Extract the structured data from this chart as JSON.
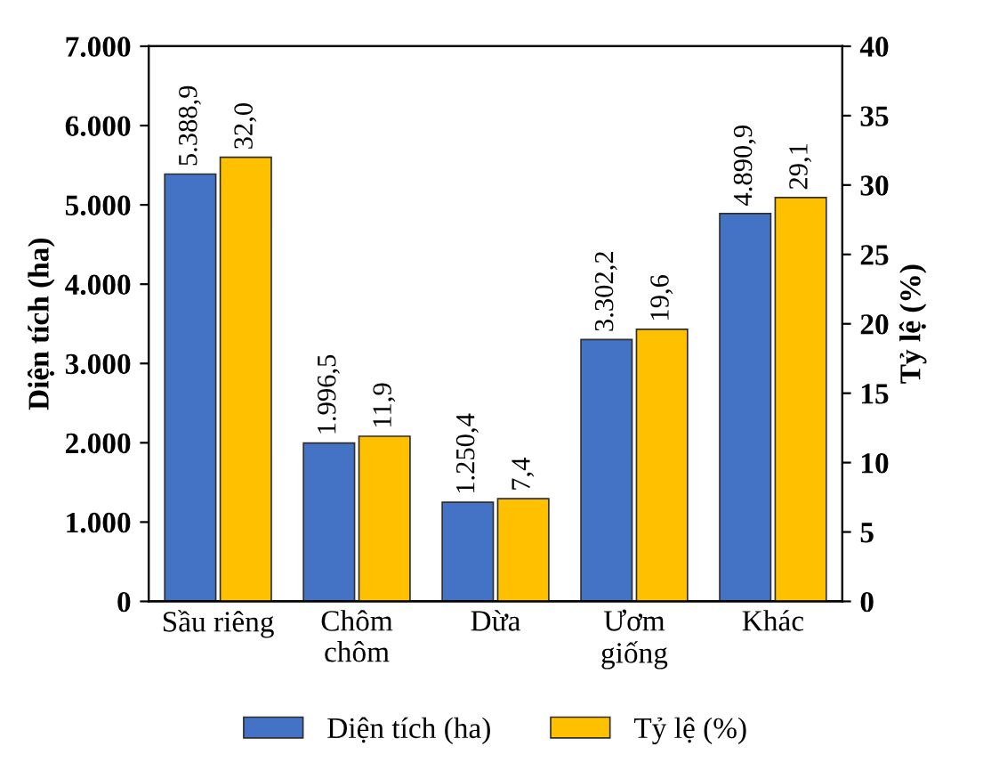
{
  "chart_data": {
    "type": "bar",
    "xlabel": null,
    "ylabel": "Diện tích (ha)",
    "y2label": "Tỷ lệ (%)",
    "categories": [
      "Sầu riêng",
      "Chôm\nchôm",
      "Dừa",
      "Ươm\ngiống",
      "Khác"
    ],
    "series": [
      {
        "name": "Diện tích (ha)",
        "color": "#4472c4",
        "values": [
          5388.9,
          1996.5,
          1250.4,
          3302.2,
          4890.9
        ],
        "value_labels": [
          "5.388,9",
          "1.996,5",
          "1.250,4",
          "3.302,2",
          "4.890,9"
        ]
      },
      {
        "name": "Tỷ lệ (%)",
        "color": "#ffc000",
        "axis": "y2",
        "values": [
          32.0,
          11.9,
          7.4,
          19.6,
          29.1
        ],
        "value_labels": [
          "32,0",
          "11,9",
          "7,4",
          "19,6",
          "29,1"
        ]
      }
    ],
    "ylim": [
      0,
      7000
    ],
    "yticks": [
      {
        "value": 0,
        "label": "0"
      },
      {
        "value": 1000,
        "label": "1.000"
      },
      {
        "value": 2000,
        "label": "2.000"
      },
      {
        "value": 3000,
        "label": "3.000"
      },
      {
        "value": 4000,
        "label": "4.000"
      },
      {
        "value": 5000,
        "label": "5.000"
      },
      {
        "value": 6000,
        "label": "6.000"
      },
      {
        "value": 7000,
        "label": "7.000"
      }
    ],
    "y2lim": [
      0,
      40
    ],
    "y2ticks": [
      0,
      5,
      10,
      15,
      20,
      25,
      30,
      35,
      40
    ],
    "grid": false,
    "legend": "bottom"
  }
}
